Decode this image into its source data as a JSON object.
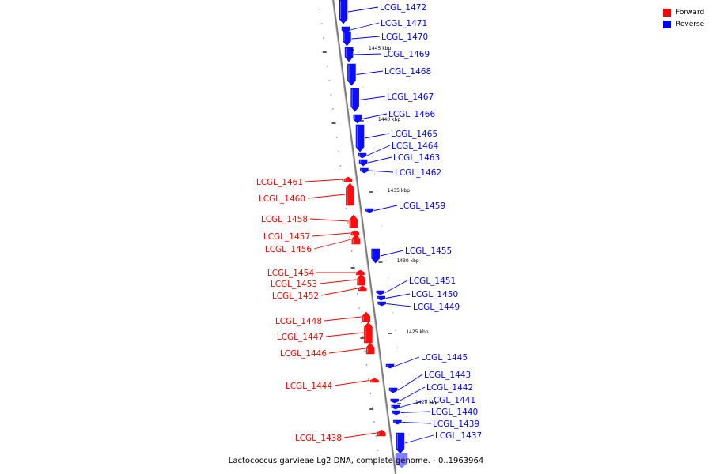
{
  "legend": {
    "forward_label": "Forward",
    "reverse_label": "Reverse",
    "forward_color": "#ff0000",
    "reverse_color": "#0000ff"
  },
  "caption": "Lactococcus garvieae Lg2 DNA, complete genome. - 0..1963964",
  "scale_labels": [
    "1445 kbp",
    "1440 kbp",
    "1435 kbp",
    "1430 kbp",
    "1425 kbp",
    "1420 kbp"
  ],
  "reverse_genes": [
    "LCGL_1472",
    "LCGL_1471",
    "LCGL_1470",
    "LCGL_1469",
    "LCGL_1468",
    "LCGL_1467",
    "LCGL_1466",
    "LCGL_1465",
    "LCGL_1464",
    "LCGL_1463",
    "LCGL_1462",
    "LCGL_1459",
    "LCGL_1455",
    "LCGL_1451",
    "LCGL_1450",
    "LCGL_1449",
    "LCGL_1445",
    "LCGL_1443",
    "LCGL_1442",
    "LCGL_1441",
    "LCGL_1440",
    "LCGL_1439",
    "LCGL_1437"
  ],
  "forward_genes": [
    "LCGL_1461",
    "LCGL_1460",
    "LCGL_1458",
    "LCGL_1457",
    "LCGL_1456",
    "LCGL_1454",
    "LCGL_1453",
    "LCGL_1452",
    "LCGL_1448",
    "LCGL_1447",
    "LCGL_1446",
    "LCGL_1444",
    "LCGL_1438"
  ]
}
